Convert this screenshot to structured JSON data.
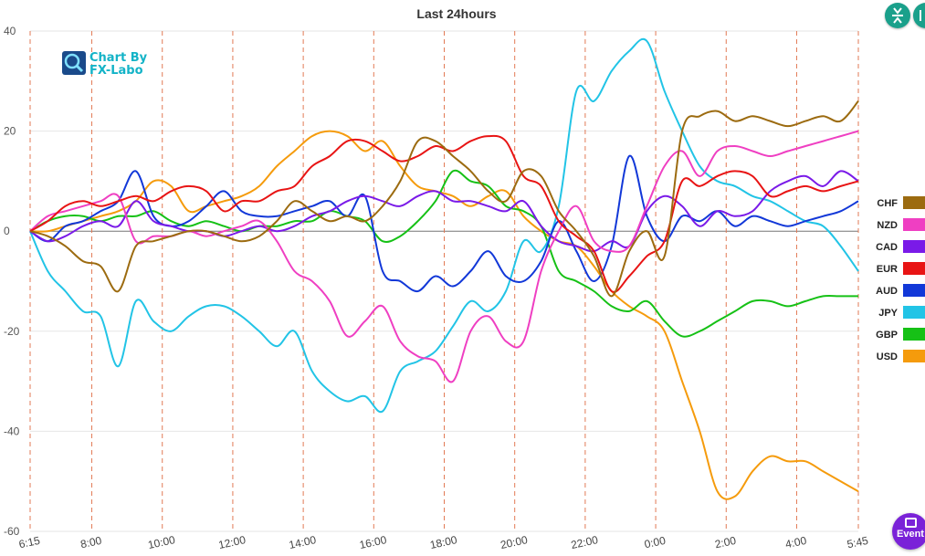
{
  "logo": {
    "line1": "Chart By",
    "line2": "FX-Labo"
  },
  "event_button": {
    "label": "Event"
  },
  "colors": {
    "CHF": "#9c6b10",
    "NZD": "#ef3fc2",
    "CAD": "#7a1ae8",
    "EUR": "#e81414",
    "AUD": "#1238d8",
    "JPY": "#22c4e6",
    "GBP": "#16c116",
    "USD": "#f59b0c"
  },
  "chart_data": {
    "type": "line",
    "title": "Last 24hours",
    "xlabel": "",
    "ylabel": "",
    "ylim": [
      -60,
      40
    ],
    "y_ticks": [
      -60,
      -40,
      -20,
      0,
      20,
      40
    ],
    "x_start_label": "6:15",
    "x_end_label": "5:45",
    "x_tick_labels": [
      "6:15",
      "8:00",
      "10:00",
      "12:00",
      "14:00",
      "16:00",
      "18:00",
      "20:00",
      "22:00",
      "0:00",
      "2:00",
      "4:00",
      "5:45"
    ],
    "x_tick_hours": [
      0,
      1.75,
      3.75,
      5.75,
      7.75,
      9.75,
      11.75,
      13.75,
      15.75,
      17.75,
      19.75,
      21.75,
      23.5
    ],
    "legend_position": "right",
    "grid": true,
    "series": [
      {
        "name": "CHF",
        "x": [
          0,
          0.5,
          1,
          1.5,
          2,
          2.5,
          3,
          3.5,
          4,
          4.5,
          5,
          5.5,
          6,
          6.5,
          7,
          7.5,
          8,
          8.5,
          9,
          9.5,
          10,
          10.5,
          11,
          11.5,
          12,
          12.5,
          13,
          13.5,
          14,
          14.5,
          15,
          15.5,
          16,
          16.5,
          17,
          17.5,
          18,
          18.5,
          19,
          19.5,
          20,
          20.5,
          21,
          21.5,
          22,
          22.5,
          23,
          23.5
        ],
        "values": [
          0,
          -1,
          -3,
          -6,
          -7,
          -12,
          -3,
          -2,
          -1,
          0,
          0,
          -1,
          -2,
          -1,
          2,
          6,
          4,
          2,
          3,
          2,
          5,
          10,
          18,
          18,
          15,
          12,
          8,
          6,
          12,
          11,
          4,
          0,
          -5,
          -13,
          -4,
          0,
          -5,
          20,
          23,
          24,
          22,
          23,
          22,
          21,
          22,
          23,
          22,
          26
        ]
      },
      {
        "name": "NZD",
        "x": [
          0,
          0.5,
          1,
          1.5,
          2,
          2.5,
          3,
          3.5,
          4,
          4.5,
          5,
          5.5,
          6,
          6.5,
          7,
          7.5,
          8,
          8.5,
          9,
          9.5,
          10,
          10.5,
          11,
          11.5,
          12,
          12.5,
          13,
          13.5,
          14,
          14.5,
          15,
          15.5,
          16,
          16.5,
          17,
          17.5,
          18,
          18.5,
          19,
          19.5,
          20,
          20.5,
          21,
          21.5,
          22,
          22.5,
          23,
          23.5
        ],
        "values": [
          0,
          3,
          4,
          5,
          6,
          7,
          -2,
          -1,
          -1,
          0,
          -1,
          0,
          1,
          2,
          -2,
          -8,
          -10,
          -14,
          -21,
          -18,
          -15,
          -22,
          -25,
          -26,
          -30,
          -20,
          -17,
          -22,
          -22,
          -8,
          0,
          5,
          -2,
          -4,
          -3,
          5,
          13,
          16,
          11,
          16,
          17,
          16,
          15,
          16,
          17,
          18,
          19,
          20
        ]
      },
      {
        "name": "CAD",
        "x": [
          0,
          0.5,
          1,
          1.5,
          2,
          2.5,
          3,
          3.5,
          4,
          4.5,
          5,
          5.5,
          6,
          6.5,
          7,
          7.5,
          8,
          8.5,
          9,
          9.5,
          10,
          10.5,
          11,
          11.5,
          12,
          12.5,
          13,
          13.5,
          14,
          14.5,
          15,
          15.5,
          16,
          16.5,
          17,
          17.5,
          18,
          18.5,
          19,
          19.5,
          20,
          20.5,
          21,
          21.5,
          22,
          22.5,
          23,
          23.5
        ],
        "values": [
          0,
          -2,
          -1,
          1,
          2,
          1,
          6,
          2,
          1,
          0,
          0,
          -1,
          0,
          1,
          0,
          1,
          3,
          4,
          6,
          7,
          6,
          5,
          7,
          8,
          6,
          6,
          5,
          4,
          6,
          1,
          -2,
          -3,
          -4,
          -2,
          -3,
          4,
          7,
          5,
          1,
          4,
          3,
          4,
          8,
          10,
          11,
          9,
          12,
          10
        ]
      },
      {
        "name": "EUR",
        "x": [
          0,
          0.5,
          1,
          1.5,
          2,
          2.5,
          3,
          3.5,
          4,
          4.5,
          5,
          5.5,
          6,
          6.5,
          7,
          7.5,
          8,
          8.5,
          9,
          9.5,
          10,
          10.5,
          11,
          11.5,
          12,
          12.5,
          13,
          13.5,
          14,
          14.5,
          15,
          15.5,
          16,
          16.5,
          17,
          17.5,
          18,
          18.5,
          19,
          19.5,
          20,
          20.5,
          21,
          21.5,
          22,
          22.5,
          23,
          23.5
        ],
        "values": [
          0,
          2,
          5,
          6,
          5,
          6,
          7,
          6,
          8,
          9,
          8,
          4,
          6,
          6,
          8,
          9,
          13,
          15,
          18,
          18,
          16,
          14,
          15,
          17,
          16,
          18,
          19,
          18,
          11,
          9,
          2,
          -1,
          -4,
          -12,
          -9,
          -5,
          -2,
          10,
          9,
          11,
          12,
          11,
          7,
          8,
          9,
          8,
          9,
          10
        ]
      },
      {
        "name": "AUD",
        "x": [
          0,
          0.5,
          1,
          1.5,
          2,
          2.5,
          3,
          3.5,
          4,
          4.5,
          5,
          5.5,
          6,
          6.5,
          7,
          7.5,
          8,
          8.5,
          9,
          9.5,
          10,
          10.5,
          11,
          11.5,
          12,
          12.5,
          13,
          13.5,
          14,
          14.5,
          15,
          15.5,
          16,
          16.5,
          17,
          17.5,
          18,
          18.5,
          19,
          19.5,
          20,
          20.5,
          21,
          21.5,
          22,
          22.5,
          23,
          23.5
        ],
        "values": [
          0,
          -2,
          1,
          2,
          4,
          6,
          12,
          3,
          1,
          2,
          5,
          8,
          4,
          3,
          3,
          4,
          5,
          6,
          3,
          7,
          -8,
          -10,
          -12,
          -9,
          -11,
          -8,
          -4,
          -9,
          -10,
          -6,
          2,
          -4,
          -10,
          -3,
          15,
          3,
          -2,
          3,
          2,
          4,
          1,
          3,
          2,
          1,
          2,
          3,
          4,
          6
        ]
      },
      {
        "name": "JPY",
        "x": [
          0,
          0.5,
          1,
          1.5,
          2,
          2.5,
          3,
          3.5,
          4,
          4.5,
          5,
          5.5,
          6,
          6.5,
          7,
          7.5,
          8,
          8.5,
          9,
          9.5,
          10,
          10.5,
          11,
          11.5,
          12,
          12.5,
          13,
          13.5,
          14,
          14.5,
          15,
          15.5,
          16,
          16.5,
          17,
          17.5,
          18,
          18.5,
          19,
          19.5,
          20,
          20.5,
          21,
          21.5,
          22,
          22.5,
          23,
          23.5
        ],
        "values": [
          0,
          -8,
          -12,
          -16,
          -17,
          -27,
          -14,
          -18,
          -20,
          -17,
          -15,
          -15,
          -17,
          -20,
          -23,
          -20,
          -28,
          -32,
          -34,
          -33,
          -36,
          -28,
          -26,
          -24,
          -19,
          -14,
          -16,
          -12,
          -2,
          -4,
          5,
          28,
          26,
          32,
          36,
          38,
          28,
          20,
          13,
          10,
          9,
          7,
          6,
          4,
          2,
          1,
          -3,
          -8
        ]
      },
      {
        "name": "GBP",
        "x": [
          0,
          0.5,
          1,
          1.5,
          2,
          2.5,
          3,
          3.5,
          4,
          4.5,
          5,
          5.5,
          6,
          6.5,
          7,
          7.5,
          8,
          8.5,
          9,
          9.5,
          10,
          10.5,
          11,
          11.5,
          12,
          12.5,
          13,
          13.5,
          14,
          14.5,
          15,
          15.5,
          16,
          16.5,
          17,
          17.5,
          18,
          18.5,
          19,
          19.5,
          20,
          20.5,
          21,
          21.5,
          22,
          22.5,
          23,
          23.5
        ],
        "values": [
          0,
          2,
          3,
          3,
          2,
          3,
          3,
          4,
          2,
          1,
          2,
          1,
          0,
          1,
          1,
          2,
          2,
          4,
          3,
          2,
          -2,
          -1,
          2,
          6,
          12,
          10,
          9,
          5,
          4,
          1,
          -8,
          -10,
          -12,
          -15,
          -16,
          -14,
          -18,
          -21,
          -20,
          -18,
          -16,
          -14,
          -14,
          -15,
          -14,
          -13,
          -13,
          -13
        ]
      },
      {
        "name": "USD",
        "x": [
          0,
          0.5,
          1,
          1.5,
          2,
          2.5,
          3,
          3.5,
          4,
          4.5,
          5,
          5.5,
          6,
          6.5,
          7,
          7.5,
          8,
          8.5,
          9,
          9.5,
          10,
          10.5,
          11,
          11.5,
          12,
          12.5,
          13,
          13.5,
          14,
          14.5,
          15,
          15.5,
          16,
          16.5,
          17,
          17.5,
          18,
          18.5,
          19,
          19.5,
          20,
          20.5,
          21,
          21.5,
          22,
          22.5,
          23,
          23.5
        ],
        "values": [
          0,
          0,
          1,
          2,
          3,
          4,
          6,
          10,
          9,
          4,
          5,
          6,
          7,
          9,
          13,
          16,
          19,
          20,
          19,
          16,
          18,
          13,
          9,
          8,
          7,
          5,
          7,
          8,
          3,
          0,
          -2,
          -3,
          -7,
          -12,
          -15,
          -17,
          -20,
          -30,
          -40,
          -52,
          -53,
          -48,
          -45,
          -46,
          -46,
          -48,
          -50,
          -52
        ]
      }
    ]
  }
}
